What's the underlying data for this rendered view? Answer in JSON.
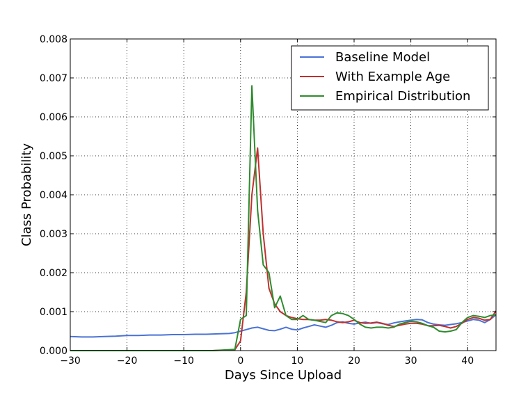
{
  "chart_data": {
    "type": "line",
    "xlabel": "Days Since Upload",
    "ylabel": "Class Probability",
    "xlim": [
      -30,
      45
    ],
    "ylim": [
      0,
      0.008
    ],
    "xticks": [
      -30,
      -20,
      -10,
      0,
      10,
      20,
      30,
      40
    ],
    "xtick_labels": [
      "−30",
      "−20",
      "−10",
      "0",
      "10",
      "20",
      "30",
      "40"
    ],
    "yticks": [
      0,
      0.001,
      0.002,
      0.003,
      0.004,
      0.005,
      0.006,
      0.007,
      0.008
    ],
    "ytick_labels": [
      "0.000",
      "0.001",
      "0.002",
      "0.003",
      "0.004",
      "0.005",
      "0.006",
      "0.007",
      "0.008"
    ],
    "grid": true,
    "legend_position": "top-right",
    "series": [
      {
        "name": "Baseline Model",
        "color": "#4a72d6",
        "x": [
          -30,
          -28,
          -26,
          -24,
          -22,
          -20,
          -18,
          -16,
          -14,
          -12,
          -10,
          -8,
          -6,
          -4,
          -2,
          -1,
          0,
          1,
          2,
          3,
          4,
          5,
          6,
          7,
          8,
          9,
          10,
          11,
          12,
          13,
          14,
          15,
          16,
          17,
          18,
          19,
          20,
          21,
          22,
          23,
          24,
          25,
          26,
          27,
          28,
          29,
          30,
          31,
          32,
          33,
          34,
          35,
          36,
          37,
          38,
          39,
          40,
          41,
          42,
          43,
          44,
          45
        ],
        "y": [
          0.00036,
          0.00035,
          0.00035,
          0.00036,
          0.00037,
          0.00039,
          0.00039,
          0.0004,
          0.0004,
          0.00041,
          0.00041,
          0.00042,
          0.00042,
          0.00043,
          0.00044,
          0.00046,
          0.0005,
          0.00054,
          0.00058,
          0.0006,
          0.00056,
          0.00052,
          0.00051,
          0.00055,
          0.0006,
          0.00055,
          0.00053,
          0.00058,
          0.00062,
          0.00066,
          0.00063,
          0.0006,
          0.00065,
          0.00072,
          0.00074,
          0.0007,
          0.00068,
          0.00071,
          0.00073,
          0.0007,
          0.00072,
          0.00069,
          0.00067,
          0.00071,
          0.00074,
          0.00076,
          0.00078,
          0.0008,
          0.00079,
          0.00072,
          0.00068,
          0.00066,
          0.00065,
          0.00067,
          0.00069,
          0.00072,
          0.00076,
          0.0008,
          0.00078,
          0.00072,
          0.0008,
          0.00092
        ]
      },
      {
        "name": "With Example Age",
        "color": "#c0302e",
        "x": [
          -30,
          -25,
          -20,
          -15,
          -10,
          -5,
          -1,
          0,
          1,
          2,
          3,
          4,
          5,
          6,
          7,
          8,
          9,
          10,
          11,
          12,
          13,
          14,
          15,
          16,
          17,
          18,
          19,
          20,
          21,
          22,
          23,
          24,
          25,
          26,
          27,
          28,
          29,
          30,
          31,
          32,
          33,
          34,
          35,
          36,
          37,
          38,
          39,
          40,
          41,
          42,
          43,
          44,
          45
        ],
        "y": [
          0,
          0,
          0,
          0,
          0,
          0,
          2e-05,
          0.00025,
          0.0015,
          0.004,
          0.0052,
          0.003,
          0.0016,
          0.0012,
          0.001,
          0.0009,
          0.00085,
          0.00082,
          0.0008,
          0.0008,
          0.00078,
          0.00078,
          0.0008,
          0.00078,
          0.00074,
          0.00072,
          0.00074,
          0.00078,
          0.00072,
          0.0007,
          0.00071,
          0.00073,
          0.0007,
          0.00065,
          0.00062,
          0.00065,
          0.00068,
          0.0007,
          0.0007,
          0.00068,
          0.00064,
          0.00064,
          0.00065,
          0.00062,
          0.00058,
          0.00062,
          0.0007,
          0.0008,
          0.00085,
          0.00083,
          0.00078,
          0.0008,
          0.00102
        ]
      },
      {
        "name": "Empirical Distribution",
        "color": "#2e8b2e",
        "x": [
          -30,
          -25,
          -20,
          -15,
          -10,
          -5,
          -1,
          0,
          1,
          2,
          3,
          4,
          5,
          6,
          7,
          8,
          9,
          10,
          11,
          12,
          13,
          14,
          15,
          16,
          17,
          18,
          19,
          20,
          21,
          22,
          23,
          24,
          25,
          26,
          27,
          28,
          29,
          30,
          31,
          32,
          33,
          34,
          35,
          36,
          37,
          38,
          39,
          40,
          41,
          42,
          43,
          44,
          45
        ],
        "y": [
          0,
          0,
          0,
          0,
          0,
          0,
          3e-05,
          0.0008,
          0.0009,
          0.0068,
          0.0036,
          0.0022,
          0.002,
          0.0011,
          0.0014,
          0.0009,
          0.0008,
          0.0008,
          0.0009,
          0.0008,
          0.00078,
          0.00075,
          0.00072,
          0.0009,
          0.00097,
          0.00095,
          0.0009,
          0.0008,
          0.00068,
          0.0006,
          0.00058,
          0.0006,
          0.0006,
          0.00058,
          0.0006,
          0.00068,
          0.00072,
          0.00075,
          0.00074,
          0.0007,
          0.00064,
          0.0006,
          0.0005,
          0.00048,
          0.0005,
          0.00054,
          0.00072,
          0.00085,
          0.0009,
          0.00088,
          0.00085,
          0.0009,
          0.00092
        ]
      }
    ]
  }
}
